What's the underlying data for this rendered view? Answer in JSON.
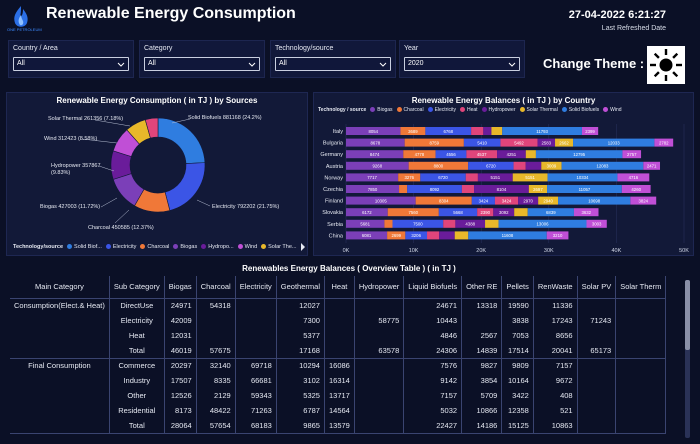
{
  "header": {
    "title": "Renewable Energy Consumption",
    "logo_text": "ONE PETROLEUM",
    "date": "27-04-2022 6:21:27",
    "refreshed_label": "Last Refreshed Date"
  },
  "filters": [
    {
      "label": "Country / Area",
      "value": "All"
    },
    {
      "label": "Category",
      "value": "All"
    },
    {
      "label": "Technology/source",
      "value": "All"
    },
    {
      "label": "Year",
      "value": "2020"
    }
  ],
  "theme": {
    "label": "Change Theme :",
    "icon": "sun-icon"
  },
  "colors": {
    "biogas": "#7b3fb8",
    "charcoal": "#f07838",
    "electricity": "#3b55e6",
    "heat": "#e0457b",
    "hydropower": "#6a1c9a",
    "solar_thermal": "#e8b82a",
    "solid_biofuels": "#2f7de0",
    "wind": "#c04fd6"
  },
  "pie": {
    "title": "Renewable Energy Consumption ( in TJ ) by Sources",
    "legend_header": "Technology/source",
    "legend": [
      "Solid Biof...",
      "Electricity",
      "Charcoal",
      "Biogas",
      "Hydropo...",
      "Wind",
      "Solar The..."
    ]
  },
  "bars": {
    "title": "Renewable Energy Balances ( in TJ ) by Country",
    "legend_header": "Technology / source",
    "legend": [
      "Biogas",
      "Charcoal",
      "Electricity",
      "Heat",
      "Hydropower",
      "Solar Thermal",
      "Solid Biofuels",
      "Wind"
    ],
    "x_ticks": [
      "0K",
      "10K",
      "20K",
      "30K",
      "40K",
      "50K"
    ]
  },
  "chart_data": [
    {
      "type": "pie",
      "title": "Renewable Energy Consumption ( in TJ ) by Sources",
      "slices": [
        {
          "name": "Solid Biofuels",
          "value": 881168,
          "pct": "24.2%",
          "label": "Solid Biofuels 881168 (24.2%)",
          "color": "#2f7de0"
        },
        {
          "name": "Electricity",
          "value": 792202,
          "pct": "21.75%",
          "label": "Electricity 792202 (21.75%)",
          "color": "#3b55e6"
        },
        {
          "name": "Charcoal",
          "value": 450585,
          "pct": "12.37%",
          "label": "Charcoal 450585 (12.37%)",
          "color": "#f07838"
        },
        {
          "name": "Biogas",
          "value": 427003,
          "pct": "11.72%",
          "label": "Biogas 427003 (11.72%)",
          "color": "#7b3fb8"
        },
        {
          "name": "Hydropower",
          "value": 357867,
          "pct": "9.83%",
          "label": "Hydropower 357867 (9.83%)",
          "color": "#6a1c9a"
        },
        {
          "name": "Wind",
          "value": 312423,
          "pct": "8.58%",
          "label": "Wind 312423 (8.58%)",
          "color": "#c04fd6"
        },
        {
          "name": "Solar Thermal",
          "value": 261356,
          "pct": "7.18%",
          "label": "Solar Thermal 261356 (7.18%)",
          "color": "#e8b82a"
        },
        {
          "name": "Heat",
          "value": 159000,
          "pct": "",
          "label": "",
          "color": "#e0457b"
        }
      ]
    },
    {
      "type": "bar",
      "orientation": "horizontal-stacked",
      "title": "Renewable Energy Balances ( in TJ ) by Country",
      "xlim": [
        0,
        50000
      ],
      "categories": [
        "Italy",
        "Bulgaria",
        "Germany",
        "Austria",
        "Norway",
        "Czechia",
        "Finland",
        "Slovakia",
        "Serbia",
        "China"
      ],
      "series": [
        {
          "name": "Biogas",
          "values": [
            8054,
            8678,
            8474,
            9268,
            7717,
            7850,
            10305,
            6172,
            5681,
            6081
          ]
        },
        {
          "name": "Charcoal",
          "values": [
            3689,
            8759,
            4778,
            8800,
            3276,
            1200,
            8304,
            7560,
            1200,
            2699
          ]
        },
        {
          "name": "Electricity",
          "values": [
            6768,
            5410,
            4556,
            6720,
            6720,
            8092,
            3424,
            5668,
            7500,
            3206
          ]
        },
        {
          "name": "Heat",
          "values": [
            1800,
            5492,
            4537,
            1800,
            1800,
            1800,
            3424,
            2390,
            1800,
            1800
          ]
        },
        {
          "name": "Hydropower",
          "values": [
            1200,
            2583,
            4251,
            2300,
            5151,
            8104,
            2970,
            3092,
            4388,
            2300
          ]
        },
        {
          "name": "Solar Thermal",
          "values": [
            1600,
            2662,
            1500,
            3009,
            5151,
            2697,
            2940,
            2000,
            2000,
            2000
          ]
        },
        {
          "name": "Solid Biofuels",
          "values": [
            11793,
            12033,
            12795,
            12083,
            10334,
            11057,
            10698,
            6839,
            13006,
            11608
          ]
        },
        {
          "name": "Wind",
          "values": [
            2399,
            2782,
            2757,
            2471,
            4716,
            4260,
            3824,
            3632,
            3003,
            3210
          ]
        }
      ]
    }
  ],
  "table": {
    "title": "Renewables Energy Balances ( Overview Table ) ( in TJ )",
    "headers": [
      "Main Category",
      "Sub Category",
      "Biogas",
      "Charcoal",
      "Electricity",
      "Geothermal",
      "Heat",
      "Hydropower",
      "Liquid Biofuels",
      "Other RE",
      "Pellets",
      "RenWaste",
      "Solar PV",
      "Solar Therm"
    ],
    "groups": [
      {
        "main": "Consumption(Elect.& Heat)",
        "rows": [
          [
            "DirectUse",
            "24971",
            "54318",
            "",
            "12027",
            "",
            "",
            "24671",
            "13318",
            "19590",
            "11336",
            "",
            ""
          ],
          [
            "Electricity",
            "42009",
            "",
            "",
            "7300",
            "",
            "58775",
            "10443",
            "",
            "3838",
            "17243",
            "71243",
            ""
          ],
          [
            "Heat",
            "12031",
            "",
            "",
            "5377",
            "",
            "",
            "4846",
            "2567",
            "7053",
            "8656",
            "",
            ""
          ],
          [
            "Total",
            "46019",
            "57675",
            "",
            "17168",
            "",
            "63578",
            "24306",
            "14839",
            "17514",
            "20041",
            "65173",
            ""
          ]
        ]
      },
      {
        "main": "Final Consumption",
        "rows": [
          [
            "Commerce",
            "20297",
            "32140",
            "69718",
            "10294",
            "16086",
            "",
            "7576",
            "9827",
            "9809",
            "7157",
            "",
            ""
          ],
          [
            "Industry",
            "17507",
            "8335",
            "66681",
            "3102",
            "16314",
            "",
            "9142",
            "3854",
            "10164",
            "9672",
            "",
            ""
          ],
          [
            "Other",
            "12526",
            "2129",
            "59343",
            "5325",
            "13717",
            "",
            "7157",
            "5709",
            "3422",
            "408",
            "",
            ""
          ],
          [
            "Residential",
            "8173",
            "48422",
            "71263",
            "6787",
            "14564",
            "",
            "5032",
            "10866",
            "12358",
            "521",
            "",
            ""
          ],
          [
            "Total",
            "28064",
            "57654",
            "68183",
            "9865",
            "13579",
            "",
            "22427",
            "14186",
            "15125",
            "10863",
            "",
            ""
          ]
        ]
      }
    ]
  }
}
